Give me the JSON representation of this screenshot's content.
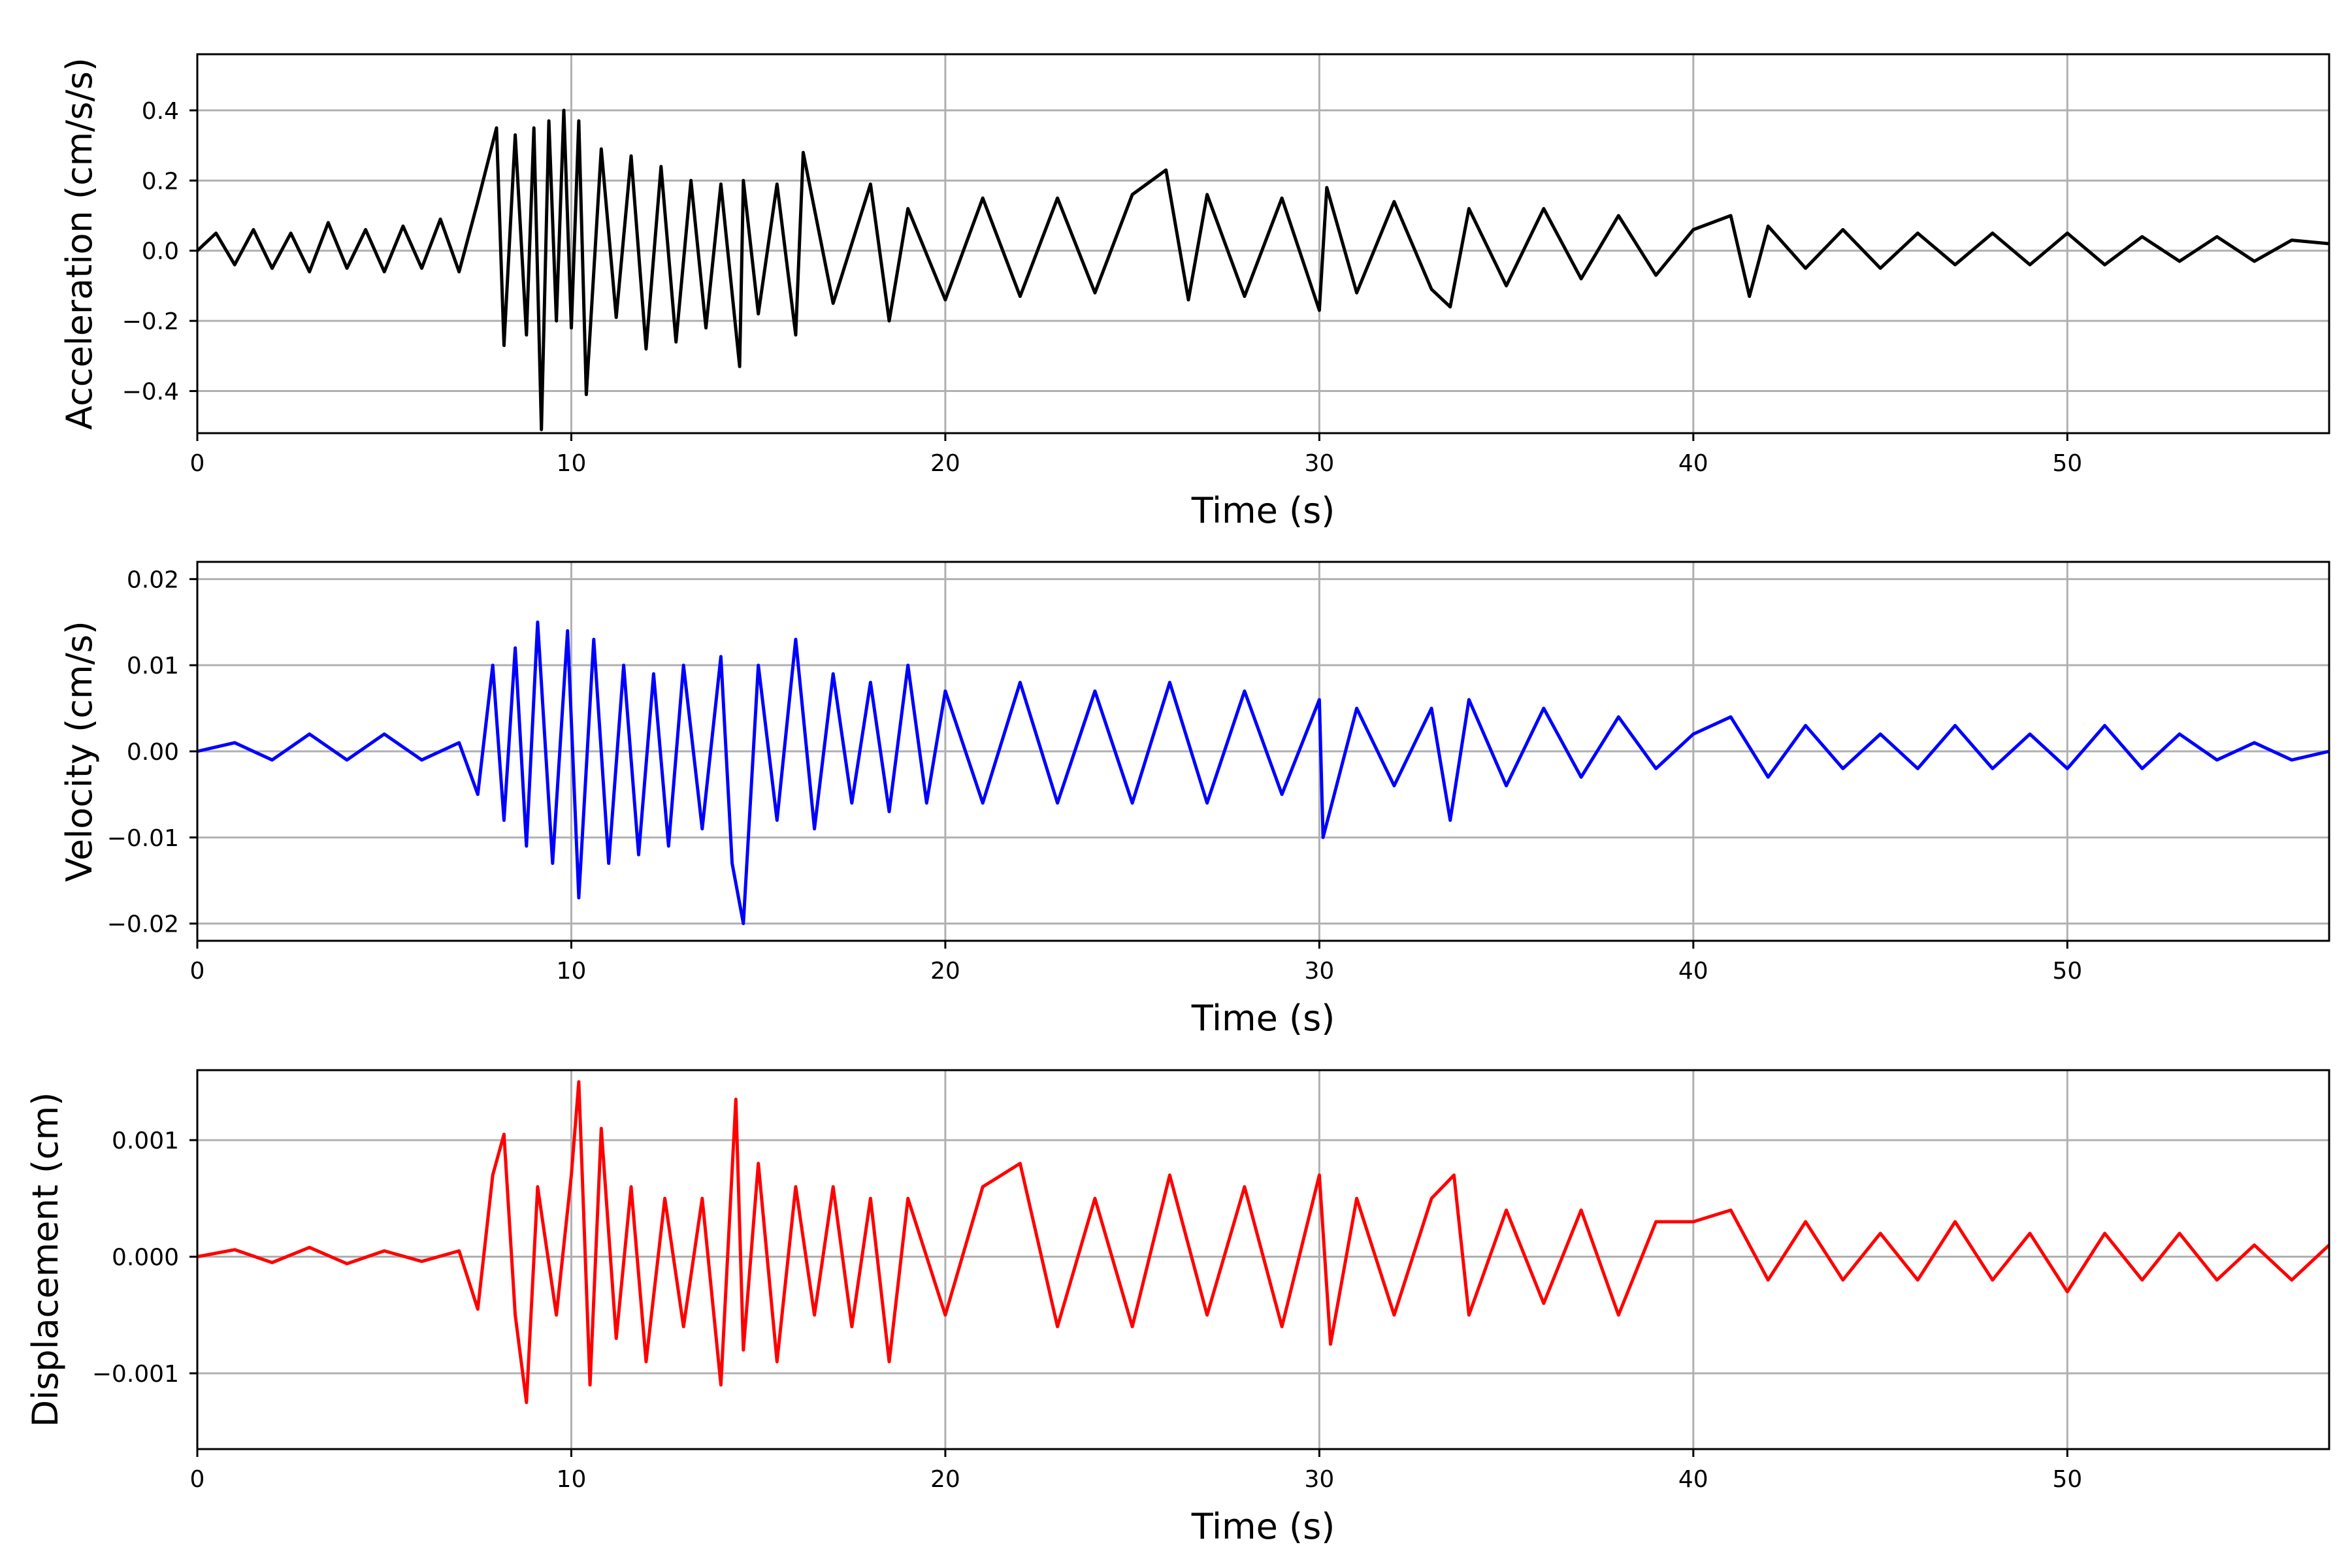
{
  "chart_data": [
    {
      "type": "line",
      "xlabel": "Time (s)",
      "ylabel": "Acceleration (cm/s/s)",
      "xlim": [
        0,
        57
      ],
      "ylim": [
        -0.52,
        0.56
      ],
      "xticks": [
        0,
        10,
        20,
        30,
        40,
        50
      ],
      "yticks": [
        0.4,
        0.2,
        0.0,
        -0.2,
        -0.4
      ],
      "ytick_labels": [
        "0.4",
        "0.2",
        "0.0",
        "−0.2",
        "−0.4"
      ],
      "grid": true,
      "color": "#000000",
      "series": [
        {
          "description": "noisy seismic acceleration record sampled ~0.06 s; onset near 7.5 s, peak shaking 8-16 s, decaying coda to 57 s",
          "x": [
            0,
            0.5,
            1,
            1.5,
            2,
            2.5,
            3,
            3.5,
            4,
            4.5,
            5,
            5.5,
            6,
            6.5,
            7,
            7.5,
            8,
            8.2,
            8.5,
            8.8,
            9.0,
            9.2,
            9.4,
            9.6,
            9.8,
            10.0,
            10.2,
            10.4,
            10.8,
            11.2,
            11.6,
            12.0,
            12.4,
            12.8,
            13.2,
            13.6,
            14.0,
            14.5,
            14.6,
            15.0,
            15.5,
            16.0,
            16.2,
            17.0,
            18.0,
            18.5,
            19.0,
            20.0,
            21.0,
            22.0,
            23.0,
            24.0,
            25.0,
            25.9,
            26.5,
            27.0,
            28.0,
            29.0,
            30.0,
            30.2,
            31.0,
            32.0,
            33.0,
            33.5,
            34.0,
            35.0,
            36.0,
            37.0,
            38.0,
            39.0,
            40.0,
            41.0,
            41.5,
            42.0,
            43.0,
            44.0,
            45.0,
            46.0,
            47.0,
            48.0,
            49.0,
            50.0,
            51.0,
            52.0,
            53.0,
            54.0,
            55.0,
            56.0,
            57.0
          ],
          "values": [
            0.0,
            0.05,
            -0.04,
            0.06,
            -0.05,
            0.05,
            -0.06,
            0.08,
            -0.05,
            0.06,
            -0.06,
            0.07,
            -0.05,
            0.09,
            -0.06,
            0.14,
            0.35,
            -0.27,
            0.33,
            -0.24,
            0.35,
            -0.51,
            0.37,
            -0.2,
            0.4,
            -0.22,
            0.37,
            -0.41,
            0.29,
            -0.19,
            0.27,
            -0.28,
            0.24,
            -0.26,
            0.2,
            -0.22,
            0.19,
            -0.33,
            0.2,
            -0.18,
            0.19,
            -0.24,
            0.28,
            -0.15,
            0.19,
            -0.2,
            0.12,
            -0.14,
            0.15,
            -0.13,
            0.15,
            -0.12,
            0.16,
            0.23,
            -0.14,
            0.16,
            -0.13,
            0.15,
            -0.17,
            0.18,
            -0.12,
            0.14,
            -0.11,
            -0.16,
            0.12,
            -0.1,
            0.12,
            -0.08,
            0.1,
            -0.07,
            0.06,
            0.1,
            -0.13,
            0.07,
            -0.05,
            0.06,
            -0.05,
            0.05,
            -0.04,
            0.05,
            -0.04,
            0.05,
            -0.04,
            0.04,
            -0.03,
            0.04,
            -0.03,
            0.03,
            0.02
          ]
        }
      ]
    },
    {
      "type": "line",
      "xlabel": "Time (s)",
      "ylabel": "Velocity (cm/s)",
      "xlim": [
        0,
        57
      ],
      "ylim": [
        -0.022,
        0.022
      ],
      "xticks": [
        0,
        10,
        20,
        30,
        40,
        50
      ],
      "yticks": [
        0.02,
        0.01,
        0.0,
        -0.01,
        -0.02
      ],
      "ytick_labels": [
        "0.02",
        "0.01",
        "0.00",
        "−0.01",
        "−0.02"
      ],
      "grid": true,
      "color": "#0000ff",
      "series": [
        {
          "description": "velocity record derived from acceleration; peak about -0.020 cm/s near 14.6 s",
          "x": [
            0,
            1,
            2,
            3,
            4,
            5,
            6,
            7,
            7.5,
            7.9,
            8.2,
            8.5,
            8.8,
            9.1,
            9.5,
            9.9,
            10.2,
            10.6,
            11.0,
            11.4,
            11.8,
            12.2,
            12.6,
            13.0,
            13.5,
            14.0,
            14.3,
            14.6,
            15.0,
            15.5,
            16.0,
            16.5,
            17.0,
            17.5,
            18.0,
            18.5,
            19.0,
            19.5,
            20.0,
            21.0,
            22.0,
            23.0,
            24.0,
            25.0,
            26.0,
            27.0,
            28.0,
            29.0,
            30.0,
            30.1,
            31.0,
            32.0,
            33.0,
            33.5,
            34.0,
            35.0,
            36.0,
            37.0,
            38.0,
            39.0,
            40.0,
            41.0,
            42.0,
            43.0,
            44.0,
            45.0,
            46.0,
            47.0,
            48.0,
            49.0,
            50.0,
            51.0,
            52.0,
            53.0,
            54.0,
            55.0,
            56.0,
            57.0
          ],
          "values": [
            0.0,
            0.001,
            -0.001,
            0.002,
            -0.001,
            0.002,
            -0.001,
            0.001,
            -0.005,
            0.01,
            -0.008,
            0.012,
            -0.011,
            0.015,
            -0.013,
            0.014,
            -0.017,
            0.013,
            -0.013,
            0.01,
            -0.012,
            0.009,
            -0.011,
            0.01,
            -0.009,
            0.011,
            -0.013,
            -0.02,
            0.01,
            -0.008,
            0.013,
            -0.009,
            0.009,
            -0.006,
            0.008,
            -0.007,
            0.01,
            -0.006,
            0.007,
            -0.006,
            0.008,
            -0.006,
            0.007,
            -0.006,
            0.008,
            -0.006,
            0.007,
            -0.005,
            0.006,
            -0.01,
            0.005,
            -0.004,
            0.005,
            -0.008,
            0.006,
            -0.004,
            0.005,
            -0.003,
            0.004,
            -0.002,
            0.002,
            0.004,
            -0.003,
            0.003,
            -0.002,
            0.002,
            -0.002,
            0.003,
            -0.002,
            0.002,
            -0.002,
            0.003,
            -0.002,
            0.002,
            -0.001,
            0.001,
            -0.001,
            0.0
          ]
        }
      ]
    },
    {
      "type": "line",
      "xlabel": "Time (s)",
      "ylabel": "Displacement (cm)",
      "xlim": [
        0,
        57
      ],
      "ylim": [
        -0.00165,
        0.0016
      ],
      "xticks": [
        0,
        10,
        20,
        30,
        40,
        50
      ],
      "yticks": [
        0.001,
        0.0,
        -0.001
      ],
      "ytick_labels": [
        "0.001",
        "0.000",
        "−0.001"
      ],
      "grid": true,
      "color": "#ff0000",
      "series": [
        {
          "description": "displacement record; peak about 0.0015 cm near 10.2 s",
          "x": [
            0,
            1,
            2,
            3,
            4,
            5,
            6,
            7,
            7.5,
            7.9,
            8.2,
            8.5,
            8.8,
            9.1,
            9.6,
            10.0,
            10.2,
            10.5,
            10.8,
            11.2,
            11.6,
            12.0,
            12.5,
            13.0,
            13.5,
            14.0,
            14.4,
            14.6,
            15.0,
            15.5,
            16.0,
            16.5,
            17.0,
            17.5,
            18.0,
            18.5,
            19.0,
            20.0,
            21.0,
            22.0,
            23.0,
            24.0,
            25.0,
            26.0,
            27.0,
            28.0,
            29.0,
            30.0,
            30.3,
            31.0,
            32.0,
            33.0,
            33.6,
            34.0,
            35.0,
            36.0,
            37.0,
            38.0,
            39.0,
            40.0,
            41.0,
            42.0,
            43.0,
            44.0,
            45.0,
            46.0,
            47.0,
            48.0,
            49.0,
            50.0,
            51.0,
            52.0,
            53.0,
            54.0,
            55.0,
            56.0,
            57.0
          ],
          "values": [
            0.0,
            6e-05,
            -5e-05,
            8e-05,
            -6e-05,
            5e-05,
            -4e-05,
            5e-05,
            -0.00045,
            0.0007,
            0.00105,
            -0.0005,
            -0.00125,
            0.0006,
            -0.0005,
            0.0007,
            0.0015,
            -0.0011,
            0.0011,
            -0.0007,
            0.0006,
            -0.0009,
            0.0005,
            -0.0006,
            0.0005,
            -0.0011,
            0.00135,
            -0.0008,
            0.0008,
            -0.0009,
            0.0006,
            -0.0005,
            0.0006,
            -0.0006,
            0.0005,
            -0.0009,
            0.0005,
            -0.0005,
            0.0006,
            0.0008,
            -0.0006,
            0.0005,
            -0.0006,
            0.0007,
            -0.0005,
            0.0006,
            -0.0006,
            0.0007,
            -0.00075,
            0.0005,
            -0.0005,
            0.0005,
            0.0007,
            -0.0005,
            0.0004,
            -0.0004,
            0.0004,
            -0.0005,
            0.0003,
            0.0003,
            0.0004,
            -0.0002,
            0.0003,
            -0.0002,
            0.0002,
            -0.0002,
            0.0003,
            -0.0002,
            0.0002,
            -0.0003,
            0.0002,
            -0.0002,
            0.0002,
            -0.0002,
            0.0001,
            -0.0002,
            0.0001
          ]
        }
      ]
    }
  ]
}
